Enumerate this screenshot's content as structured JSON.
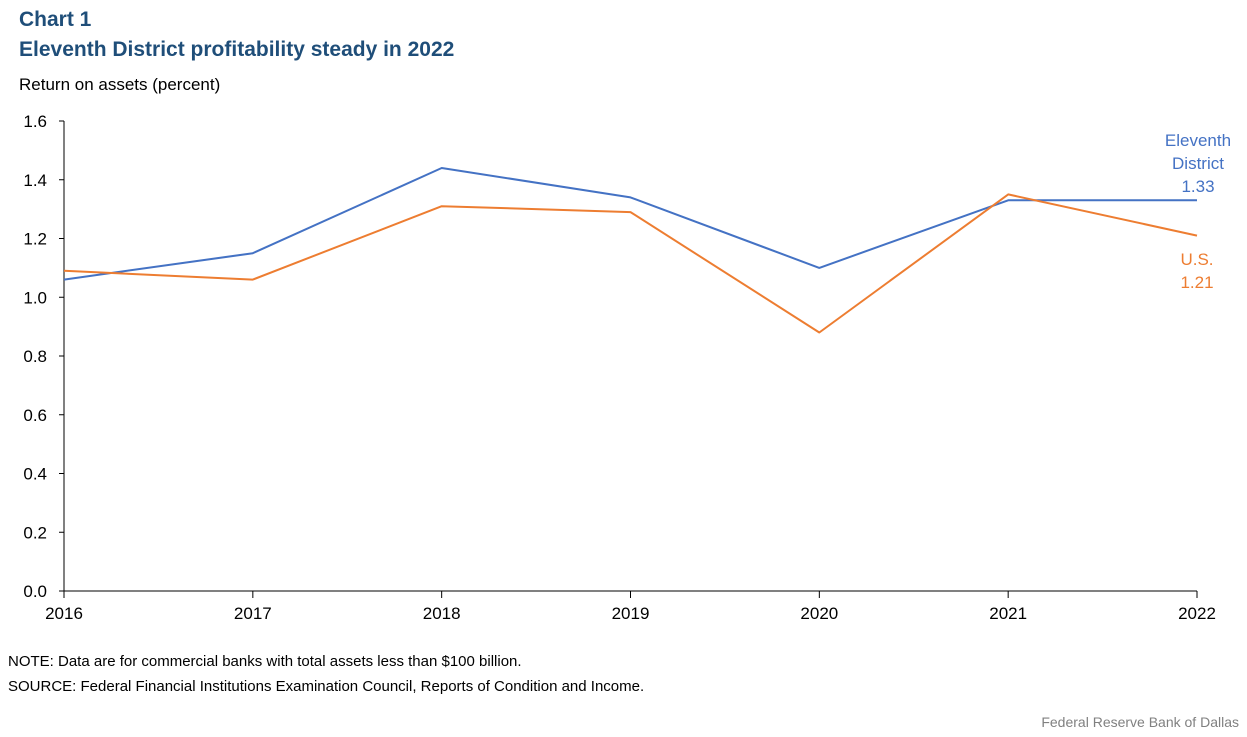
{
  "header": {
    "chart_label": "Chart 1",
    "title": "Eleventh District profitability steady in 2022"
  },
  "footer": {
    "note": "NOTE: Data are for commercial banks with total assets less than $100 billion.",
    "source": "SOURCE: Federal Financial Institutions Examination Council, Reports of Condition and Income.",
    "credit": "Federal Reserve Bank of Dallas"
  },
  "colors": {
    "eleventh": "#4472c4",
    "us": "#ed7d31",
    "title": "#1f4e79"
  },
  "chart_data": {
    "type": "line",
    "title": "Eleventh District profitability steady in 2022",
    "ylabel": "Return on assets (percent)",
    "xlabel": "",
    "categories": [
      "2016",
      "2017",
      "2018",
      "2019",
      "2020",
      "2021",
      "2022"
    ],
    "ylim": [
      0,
      1.6
    ],
    "yticks": [
      "0.0",
      "0.2",
      "0.4",
      "0.6",
      "0.8",
      "1.0",
      "1.2",
      "1.4",
      "1.6"
    ],
    "grid": false,
    "series": [
      {
        "name": "Eleventh District",
        "label_lines": [
          "Eleventh",
          "District",
          "1.33"
        ],
        "color": "#4472c4",
        "x": [
          2016,
          2017,
          2018,
          2019,
          2020,
          2021,
          2021.5,
          2022
        ],
        "values": [
          1.06,
          1.15,
          1.44,
          1.34,
          1.1,
          1.33,
          1.33,
          1.33
        ]
      },
      {
        "name": "U.S.",
        "label_lines": [
          "U.S.",
          "1.21"
        ],
        "color": "#ed7d31",
        "x": [
          2016,
          2017,
          2018,
          2019,
          2020,
          2021,
          2022
        ],
        "values": [
          1.09,
          1.06,
          1.31,
          1.29,
          0.88,
          1.35,
          1.21
        ]
      }
    ]
  }
}
